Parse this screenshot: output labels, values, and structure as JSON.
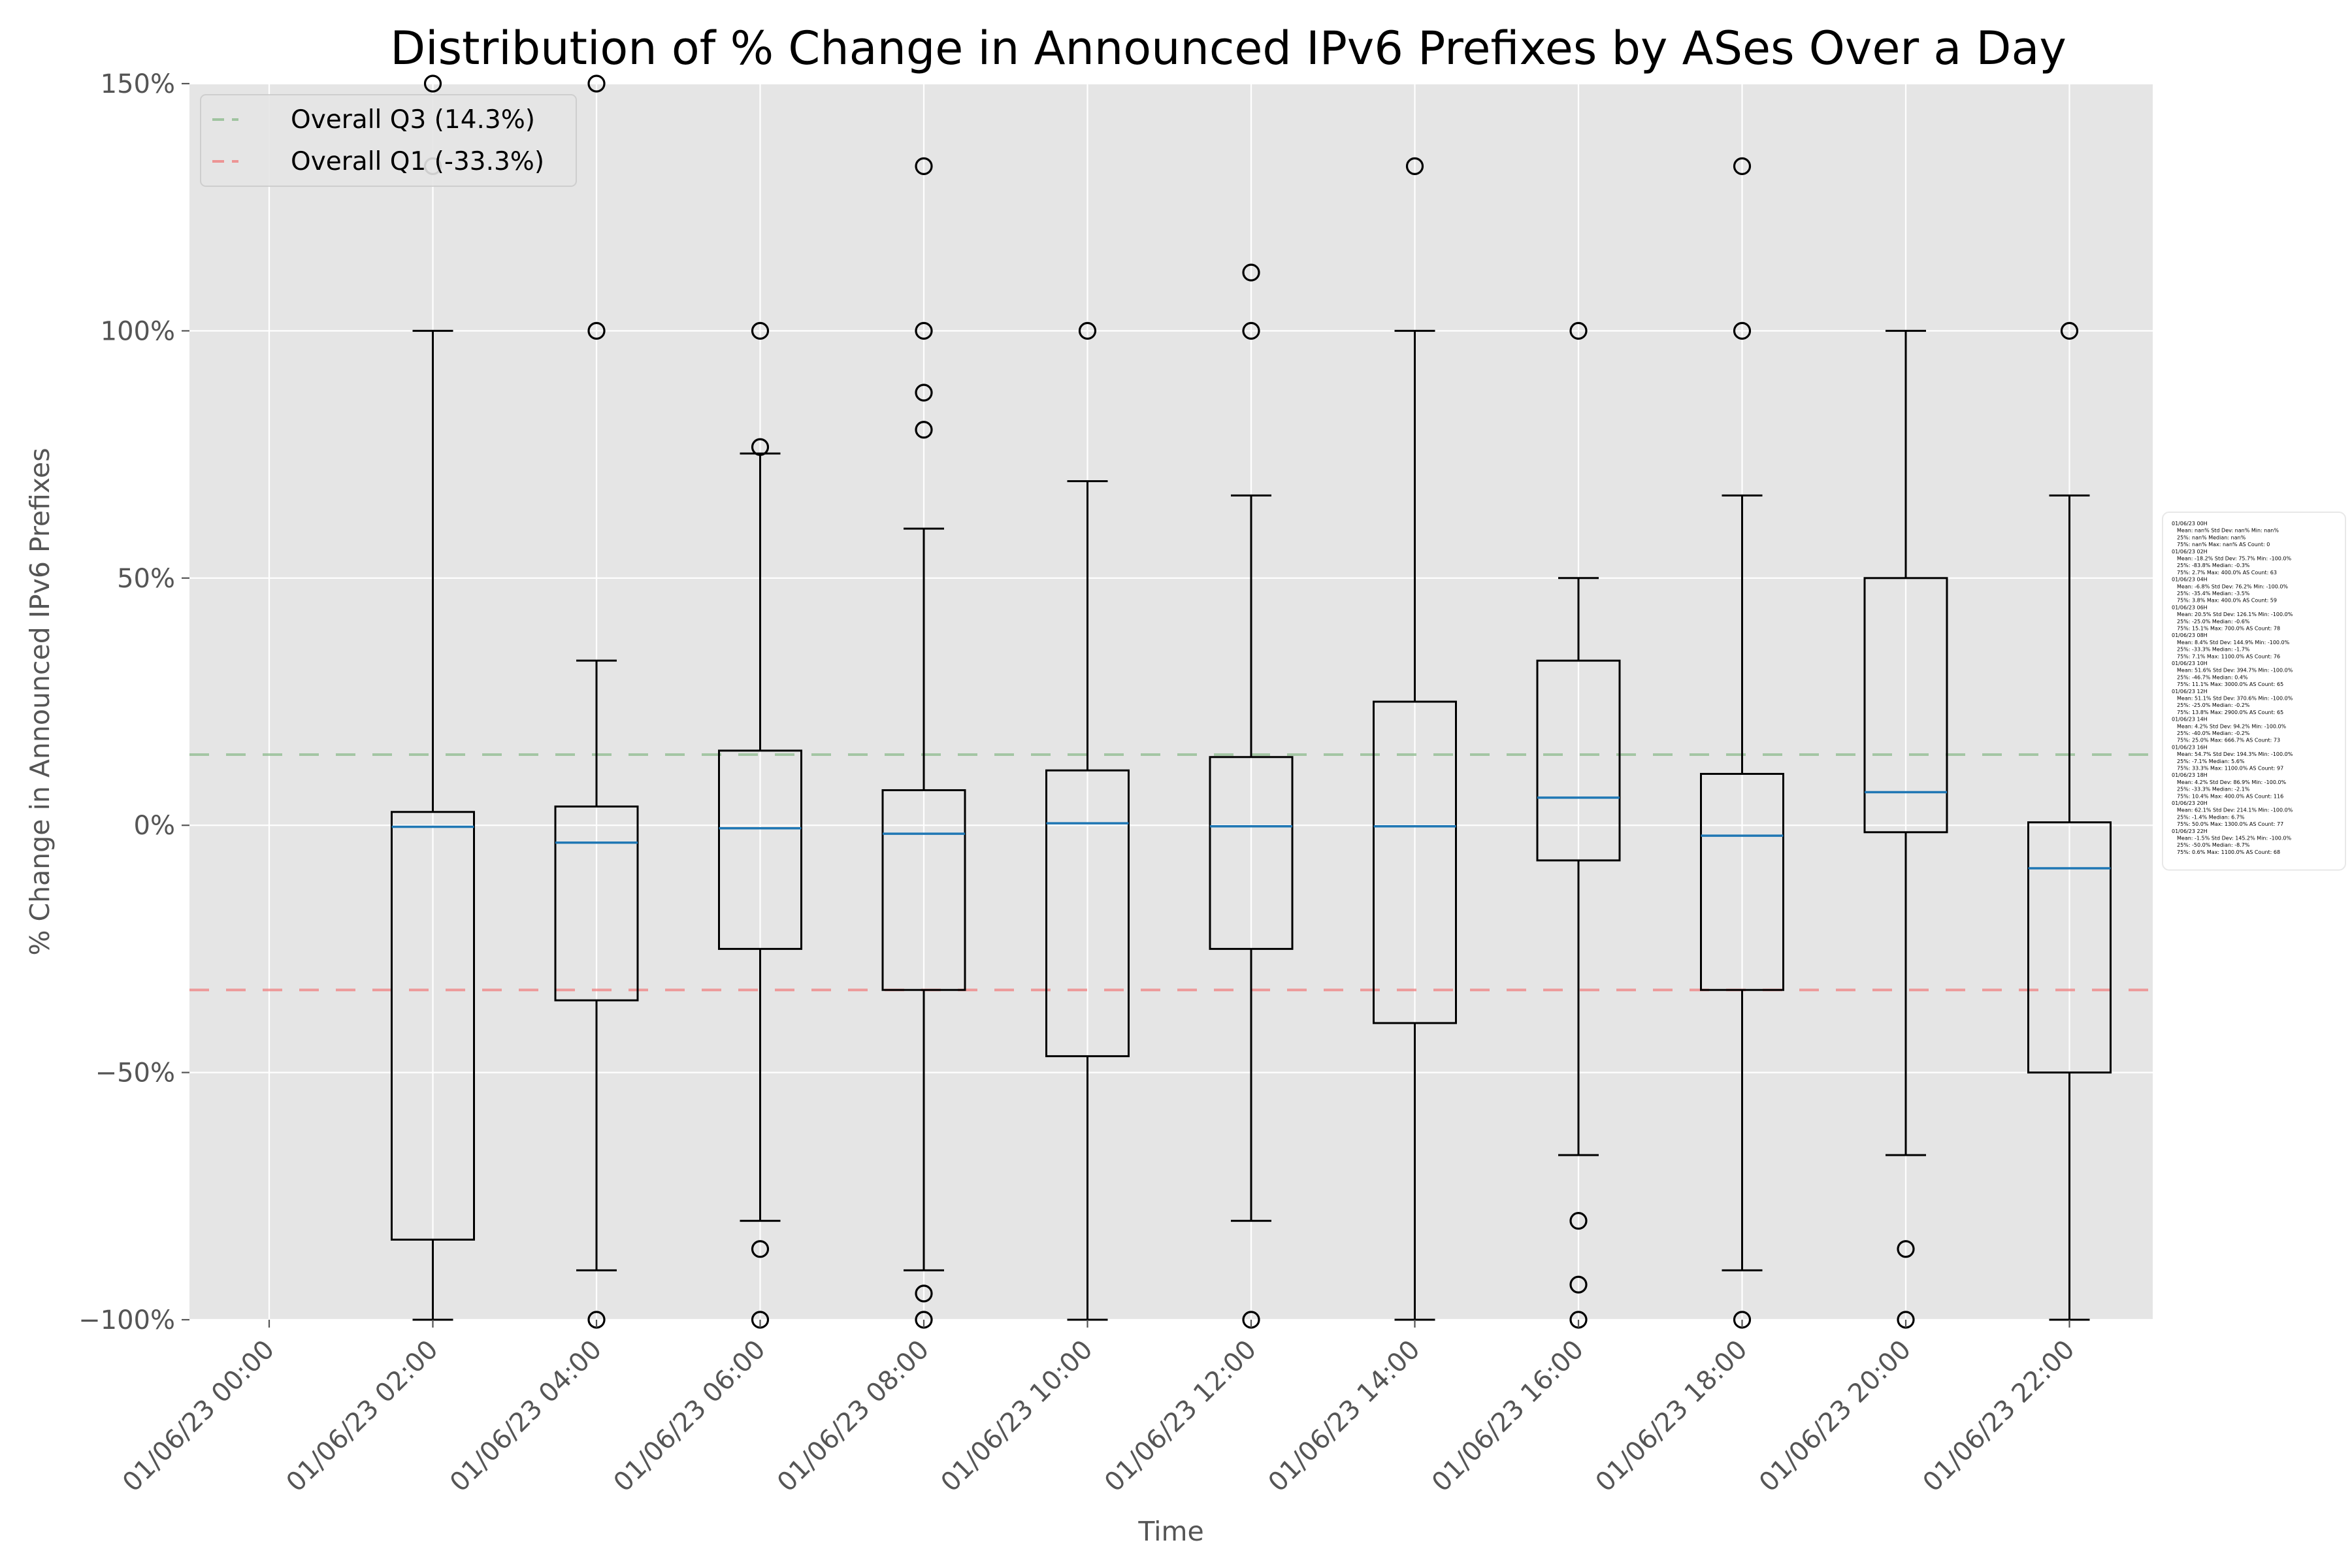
{
  "chart_data": {
    "type": "box",
    "title": "Distribution of % Change in Announced IPv6 Prefixes by ASes Over a Day",
    "xlabel": "Time",
    "ylabel": "% Change in Announced IPv6 Prefixes",
    "ylim": [
      -100,
      150
    ],
    "y_ticks": [
      -100,
      -50,
      0,
      50,
      100,
      150
    ],
    "y_tick_labels": [
      "−100%",
      "−50%",
      "0%",
      "50%",
      "100%",
      "150%"
    ],
    "grid": true,
    "legend_position": "top-left",
    "categories": [
      "01/06/23 00:00",
      "01/06/23 02:00",
      "01/06/23 04:00",
      "01/06/23 06:00",
      "01/06/23 08:00",
      "01/06/23 10:00",
      "01/06/23 12:00",
      "01/06/23 14:00",
      "01/06/23 16:00",
      "01/06/23 18:00",
      "01/06/23 20:00",
      "01/06/23 22:00"
    ],
    "boxes": [
      null,
      {
        "whisker_low": -100,
        "q1": -83.8,
        "median": -0.3,
        "q3": 2.7,
        "whisker_high": 100,
        "outliers": [
          133.3,
          150
        ]
      },
      {
        "whisker_low": -90,
        "q1": -35.4,
        "median": -3.5,
        "q3": 3.8,
        "whisker_high": 33.3,
        "outliers": [
          100,
          150,
          -100
        ]
      },
      {
        "whisker_low": -80,
        "q1": -25,
        "median": -0.6,
        "q3": 15.1,
        "whisker_high": 75.2,
        "outliers": [
          76.5,
          100,
          -85.7,
          -100
        ]
      },
      {
        "whisker_low": -90,
        "q1": -33.3,
        "median": -1.7,
        "q3": 7.1,
        "whisker_high": 60,
        "outliers": [
          80,
          87.5,
          100,
          133.3,
          -94.7,
          -100
        ]
      },
      {
        "whisker_low": -100,
        "q1": -46.7,
        "median": 0.4,
        "q3": 11.1,
        "whisker_high": 69.6,
        "outliers": [
          100
        ]
      },
      {
        "whisker_low": -80,
        "q1": -25,
        "median": -0.2,
        "q3": 13.8,
        "whisker_high": 66.7,
        "outliers": [
          100,
          111.8,
          -100
        ]
      },
      {
        "whisker_low": -100,
        "q1": -40,
        "median": -0.2,
        "q3": 25,
        "whisker_high": 100,
        "outliers": [
          133.3
        ]
      },
      {
        "whisker_low": -66.7,
        "q1": -7.1,
        "median": 5.6,
        "q3": 33.3,
        "whisker_high": 50,
        "outliers": [
          100,
          -80,
          -92.9,
          -100
        ]
      },
      {
        "whisker_low": -90,
        "q1": -33.3,
        "median": -2.1,
        "q3": 10.4,
        "whisker_high": 66.7,
        "outliers": [
          100,
          133.3,
          -100
        ]
      },
      {
        "whisker_low": -66.7,
        "q1": -1.4,
        "median": 6.7,
        "q3": 50,
        "whisker_high": 100,
        "outliers": [
          -85.7,
          -100
        ]
      },
      {
        "whisker_low": -100,
        "q1": -50,
        "median": -8.7,
        "q3": 0.6,
        "whisker_high": 66.7,
        "outliers": [
          100
        ]
      }
    ],
    "reference_lines": [
      {
        "label": "Overall Q3 (14.3%)",
        "value": 14.3,
        "color": "#8fbc8f"
      },
      {
        "label": "Overall Q1 (-33.3%)",
        "value": -33.3,
        "color": "#f08080"
      }
    ],
    "stats_box_lines": [
      "01/06/23 00H",
      "Mean: nan%  Std Dev: nan%  Min: nan%",
      "25%: nan%  Median: nan%",
      "75%: nan%  Max: nan%  AS Count: 0",
      "01/06/23 02H",
      "Mean: -18.2%  Std Dev: 75.7%  Min: -100.0%",
      "25%: -83.8%  Median: -0.3%",
      "75%: 2.7%  Max: 400.0%  AS Count: 63",
      "01/06/23 04H",
      "Mean: -6.8%  Std Dev: 76.2%  Min: -100.0%",
      "25%: -35.4%  Median: -3.5%",
      "75%: 3.8%  Max: 400.0%  AS Count: 59",
      "01/06/23 06H",
      "Mean: 20.5%  Std Dev: 126.1%  Min: -100.0%",
      "25%: -25.0%  Median: -0.6%",
      "75%: 15.1%  Max: 700.0%  AS Count: 78",
      "01/06/23 08H",
      "Mean: 8.4%  Std Dev: 144.9%  Min: -100.0%",
      "25%: -33.3%  Median: -1.7%",
      "75%: 7.1%  Max: 1100.0%  AS Count: 76",
      "01/06/23 10H",
      "Mean: 51.6%  Std Dev: 394.7%  Min: -100.0%",
      "25%: -46.7%  Median: 0.4%",
      "75%: 11.1%  Max: 3000.0%  AS Count: 65",
      "01/06/23 12H",
      "Mean: 51.1%  Std Dev: 370.6%  Min: -100.0%",
      "25%: -25.0%  Median: -0.2%",
      "75%: 13.8%  Max: 2900.0%  AS Count: 65",
      "01/06/23 14H",
      "Mean: 4.2%  Std Dev: 94.2%  Min: -100.0%",
      "25%: -40.0%  Median: -0.2%",
      "75%: 25.0%  Max: 666.7%  AS Count: 73",
      "01/06/23 16H",
      "Mean: 54.7%  Std Dev: 194.3%  Min: -100.0%",
      "25%: -7.1%  Median: 5.6%",
      "75%: 33.3%  Max: 1100.0%  AS Count: 97",
      "01/06/23 18H",
      "Mean: 4.2%  Std Dev: 86.9%  Min: -100.0%",
      "25%: -33.3%  Median: -2.1%",
      "75%: 10.4%  Max: 400.0%  AS Count: 116",
      "01/06/23 20H",
      "Mean: 62.1%  Std Dev: 214.1%  Min: -100.0%",
      "25%: -1.4%  Median: 6.7%",
      "75%: 50.0%  Max: 1300.0%  AS Count: 77",
      "01/06/23 22H",
      "Mean: -1.5%  Std Dev: 145.2%  Min: -100.0%",
      "25%: -50.0%  Median: -8.7%",
      "75%: 0.6%  Max: 1100.0%  AS Count: 68"
    ]
  }
}
